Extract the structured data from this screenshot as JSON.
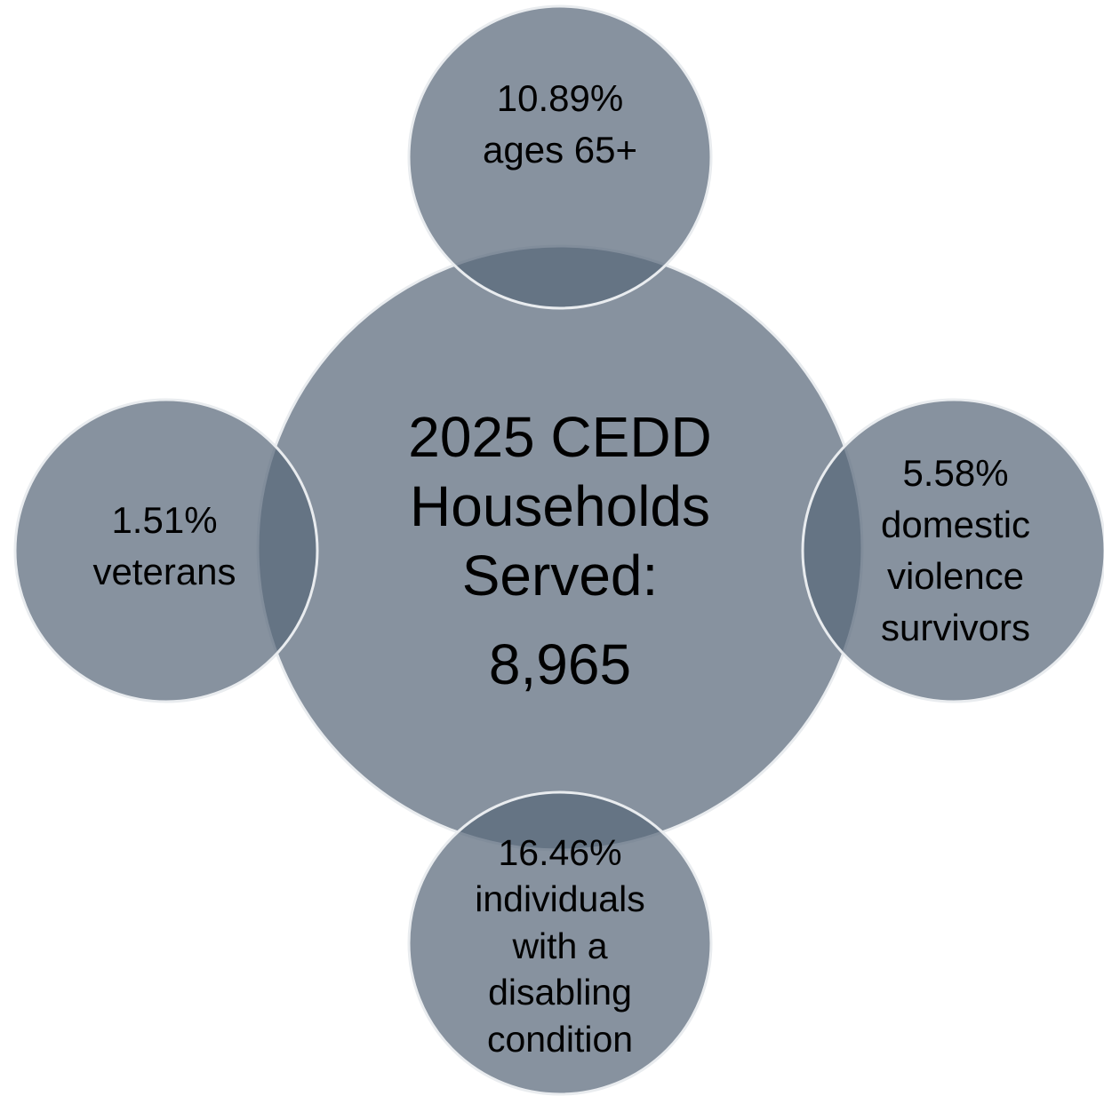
{
  "center": {
    "title_line1": "2025 CEDD",
    "title_line2": "Households",
    "title_line3": "Served:",
    "value": "8,965"
  },
  "satellites": {
    "top": {
      "percent": "10.89%",
      "line1": "ages 65+"
    },
    "left": {
      "percent": "1.51%",
      "line1": "veterans"
    },
    "right": {
      "percent": "5.58%",
      "line1": "domestic",
      "line2": "violence",
      "line3": "survivors"
    },
    "bottom": {
      "percent": "16.46%",
      "line1": "individuals",
      "line2": "with a",
      "line3": "disabling",
      "line4": "condition"
    }
  },
  "colors": {
    "circle_fill": "#59687a",
    "circle_stroke": "#e9ecef",
    "text": "#000000"
  }
}
